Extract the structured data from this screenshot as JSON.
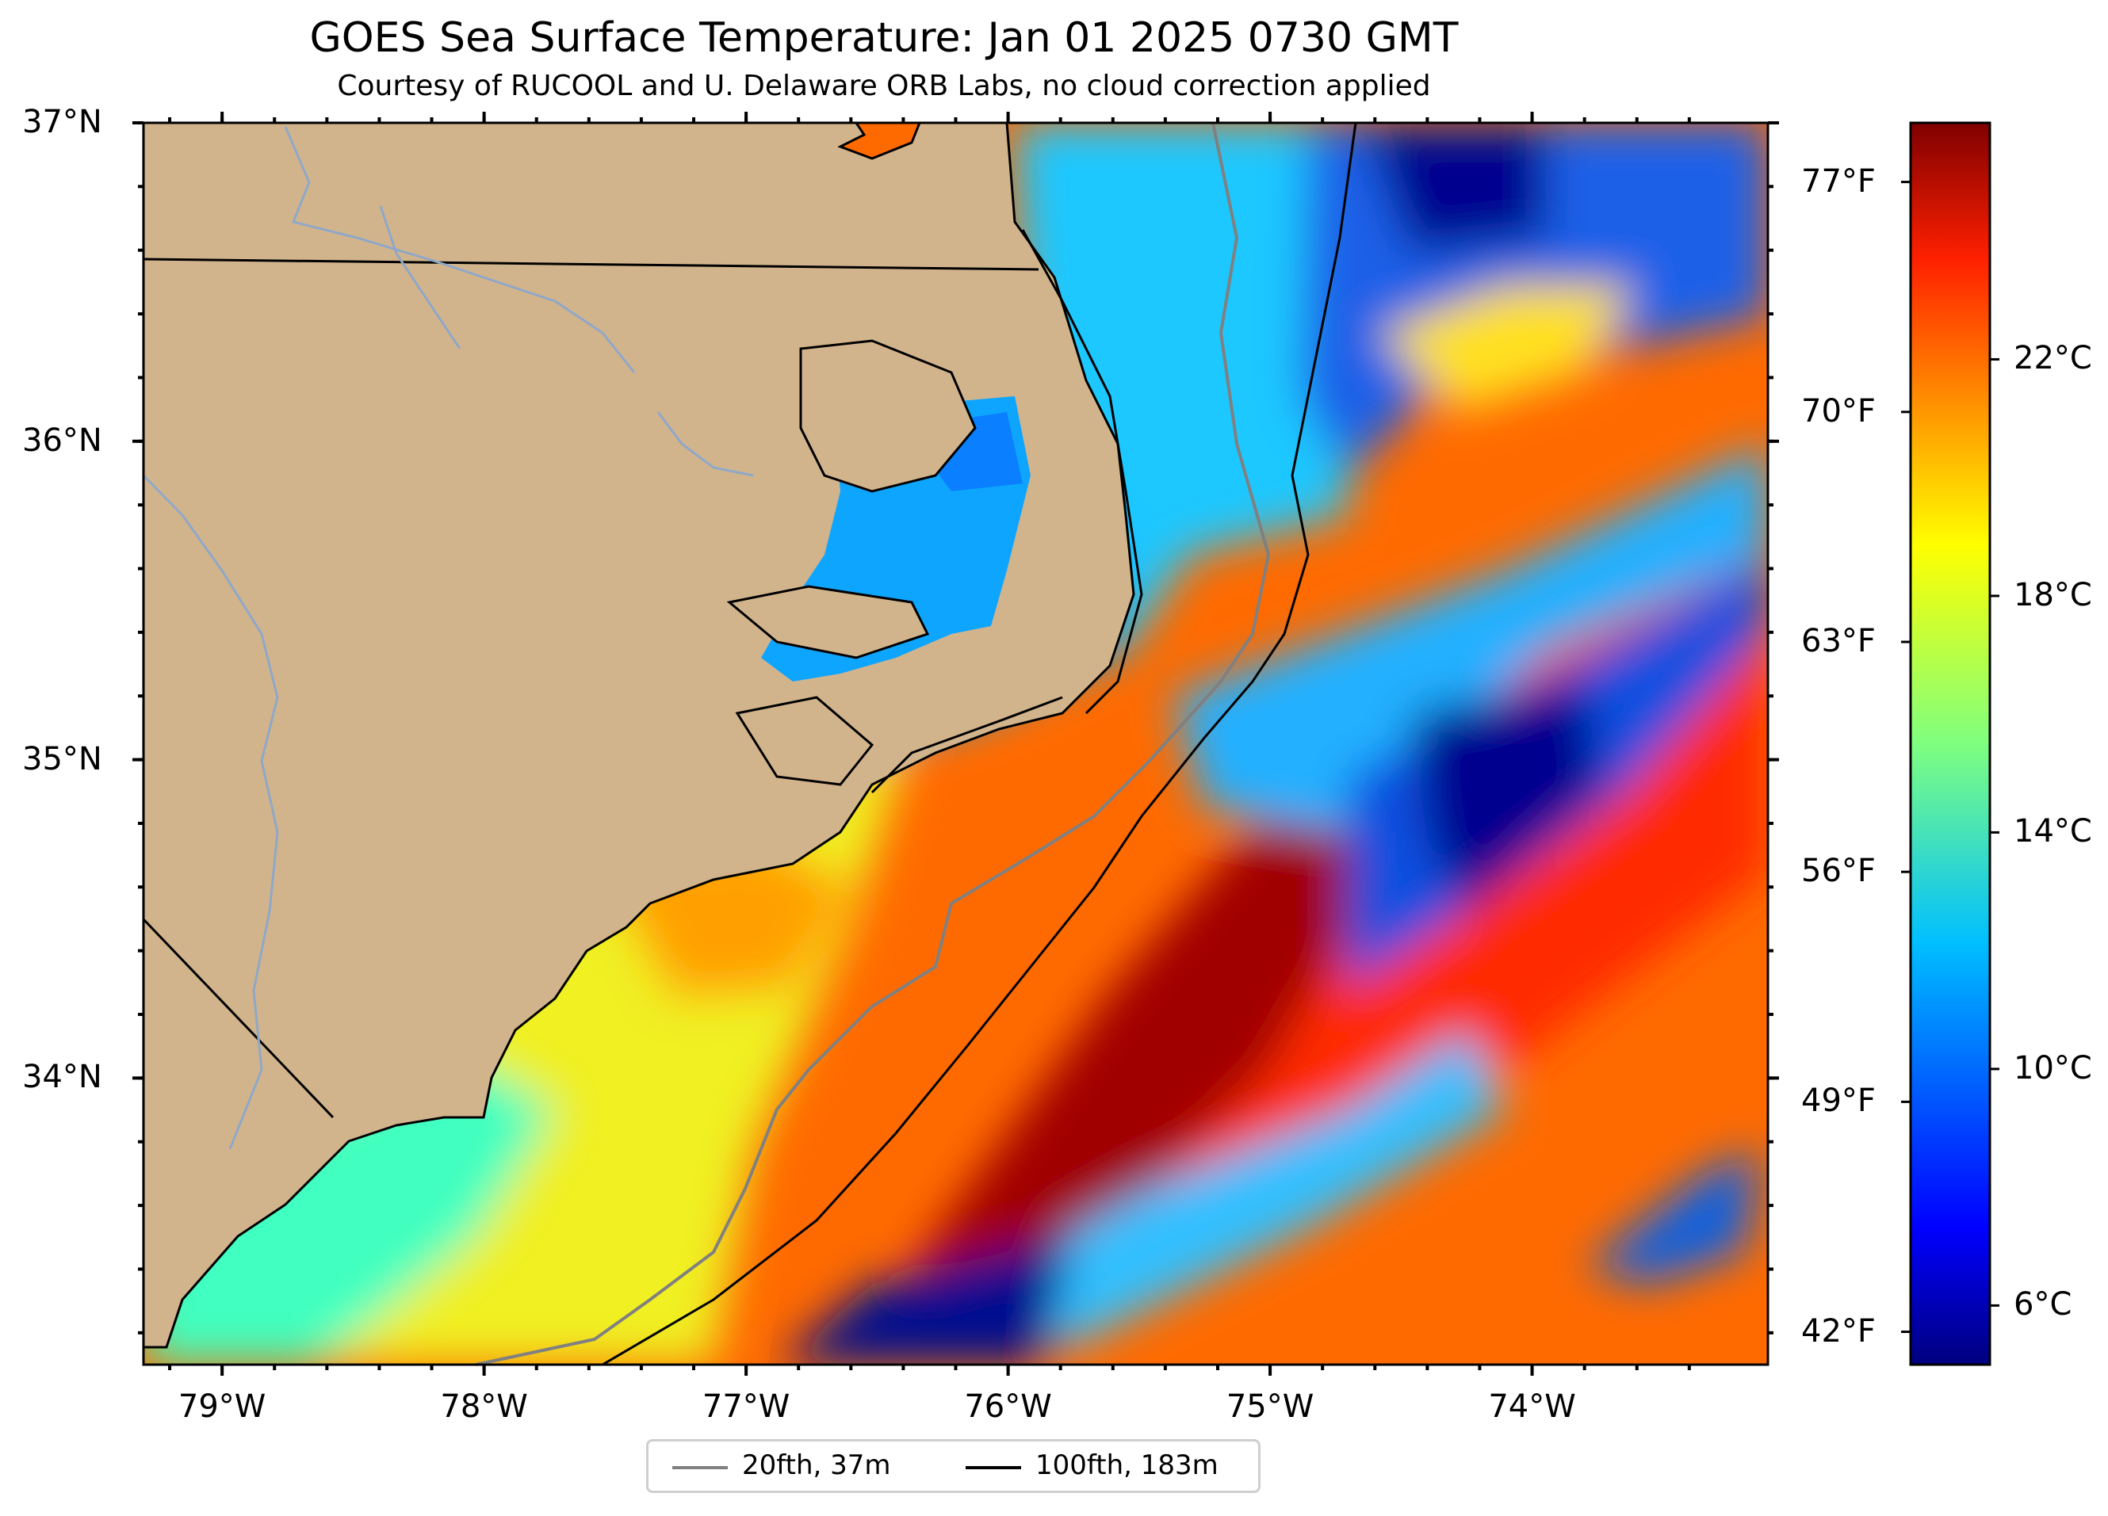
{
  "title": "GOES Sea Surface Temperature: Jan 01 2025 0730 GMT",
  "subtitle": "Courtesy of RUCOOL and U. Delaware ORB Labs, no cloud correction applied",
  "map": {
    "lon_range": [
      -79.3,
      -73.1
    ],
    "lat_range": [
      33.1,
      37.0
    ],
    "land_color": "#d2b48c",
    "coastline_color": "#000000",
    "river_color": "#8fa8c8",
    "no_data_color": "#ffffff"
  },
  "lat_ticks": [
    {
      "value": 37,
      "label": "37°N"
    },
    {
      "value": 36,
      "label": "36°N"
    },
    {
      "value": 35,
      "label": "35°N"
    },
    {
      "value": 34,
      "label": "34°N"
    }
  ],
  "lon_ticks": [
    {
      "value": -79,
      "label": "79°W"
    },
    {
      "value": -78,
      "label": "78°W"
    },
    {
      "value": -77,
      "label": "77°W"
    },
    {
      "value": -76,
      "label": "76°W"
    },
    {
      "value": -75,
      "label": "75°W"
    },
    {
      "value": -74,
      "label": "74°W"
    }
  ],
  "colorbar": {
    "colormap": "jet",
    "range_c": [
      5,
      26
    ],
    "celsius_ticks": [
      {
        "value": 22,
        "label": "22°C"
      },
      {
        "value": 18,
        "label": "18°C"
      },
      {
        "value": 14,
        "label": "14°C"
      },
      {
        "value": 10,
        "label": "10°C"
      },
      {
        "value": 6,
        "label": "6°C"
      }
    ],
    "fahrenheit_ticks": [
      {
        "value": 77,
        "label": "77°F"
      },
      {
        "value": 70,
        "label": "70°F"
      },
      {
        "value": 63,
        "label": "63°F"
      },
      {
        "value": 56,
        "label": "56°F"
      },
      {
        "value": 49,
        "label": "49°F"
      },
      {
        "value": 42,
        "label": "42°F"
      }
    ]
  },
  "legend": {
    "items": [
      {
        "label": "20fth, 37m",
        "color": "#808080"
      },
      {
        "label": "100fth, 183m",
        "color": "#000000"
      }
    ]
  }
}
